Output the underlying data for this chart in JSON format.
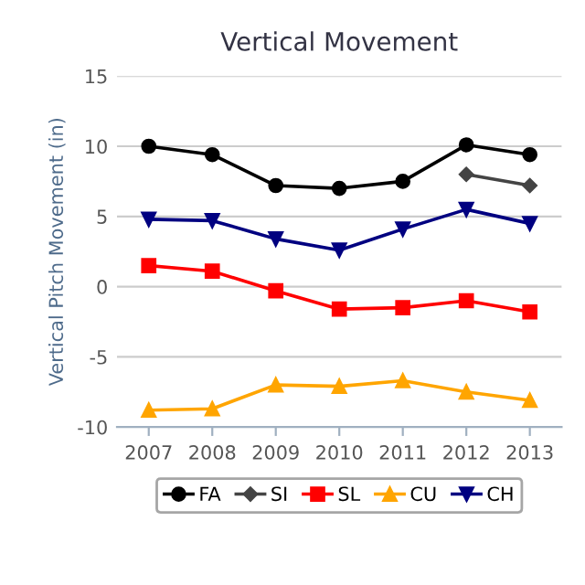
{
  "chart_data": {
    "type": "line",
    "title": "Vertical Movement",
    "ylabel": "Vertical Pitch Movement (in)",
    "categories": [
      "2007",
      "2008",
      "2009",
      "2010",
      "2011",
      "2012",
      "2013"
    ],
    "series": [
      {
        "name": "FA",
        "color": "#000000",
        "marker": "circle",
        "values": [
          10.0,
          9.4,
          7.2,
          7.0,
          7.5,
          10.1,
          9.4
        ]
      },
      {
        "name": "SI",
        "color": "#444444",
        "marker": "diamond",
        "values": [
          null,
          null,
          null,
          null,
          null,
          8.0,
          7.2
        ]
      },
      {
        "name": "SL",
        "color": "#ff0000",
        "marker": "square",
        "values": [
          1.5,
          1.1,
          -0.3,
          -1.6,
          -1.5,
          -1.0,
          -1.8
        ]
      },
      {
        "name": "CU",
        "color": "#ffa500",
        "marker": "triangle",
        "values": [
          -8.8,
          -8.7,
          -7.0,
          -7.1,
          -6.7,
          -7.5,
          -8.1
        ]
      },
      {
        "name": "CH",
        "color": "#000080",
        "marker": "triangle-down",
        "values": [
          4.8,
          4.7,
          3.4,
          2.6,
          4.1,
          5.5,
          4.5
        ]
      }
    ],
    "ylim": [
      -10,
      15
    ],
    "yticks": [
      -10,
      -5,
      0,
      5,
      10,
      15
    ],
    "grid": "y",
    "legend": "bottom",
    "line_style": "solid"
  }
}
